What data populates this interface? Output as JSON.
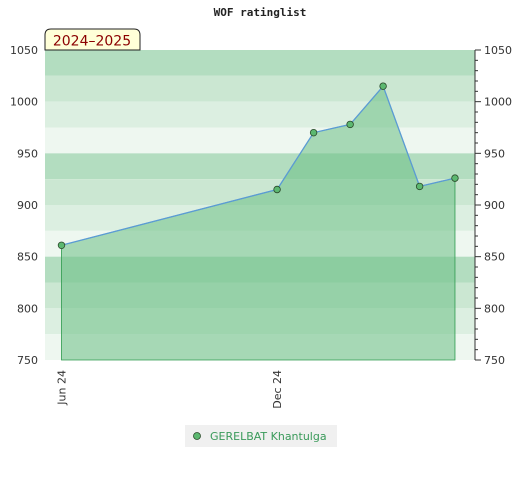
{
  "chart_data": {
    "type": "area",
    "title": "WOF ratinglist",
    "period_badge": "2024–2025",
    "xlabel": "",
    "ylabel": "",
    "ylim": [
      750,
      1050
    ],
    "yticks": [
      750,
      800,
      850,
      900,
      950,
      1000,
      1050
    ],
    "x_tick_labels": [
      "Jun 24",
      "Dec 24"
    ],
    "grid": true,
    "legend_position": "bottom-center",
    "series": [
      {
        "name": "GERELBAT Khantulga",
        "points": [
          {
            "x": "2024-06-15",
            "y": 861
          },
          {
            "x": "2024-12-15",
            "y": 915
          },
          {
            "x": "2025-01-15",
            "y": 970
          },
          {
            "x": "2025-02-15",
            "y": 978
          },
          {
            "x": "2025-03-15",
            "y": 1015
          },
          {
            "x": "2025-04-15",
            "y": 918
          },
          {
            "x": "2025-05-15",
            "y": 926
          }
        ]
      }
    ]
  },
  "colors": {
    "area_fill": "#6bbf85",
    "line": "#5b9bd5",
    "marker_fill": "#5cb870",
    "marker_stroke": "#2a4a2a",
    "badge_bg": "#ffffd8",
    "badge_text": "#8b0000",
    "legend_text": "#3a9a5a",
    "legend_bg": "#f0f0f0"
  }
}
